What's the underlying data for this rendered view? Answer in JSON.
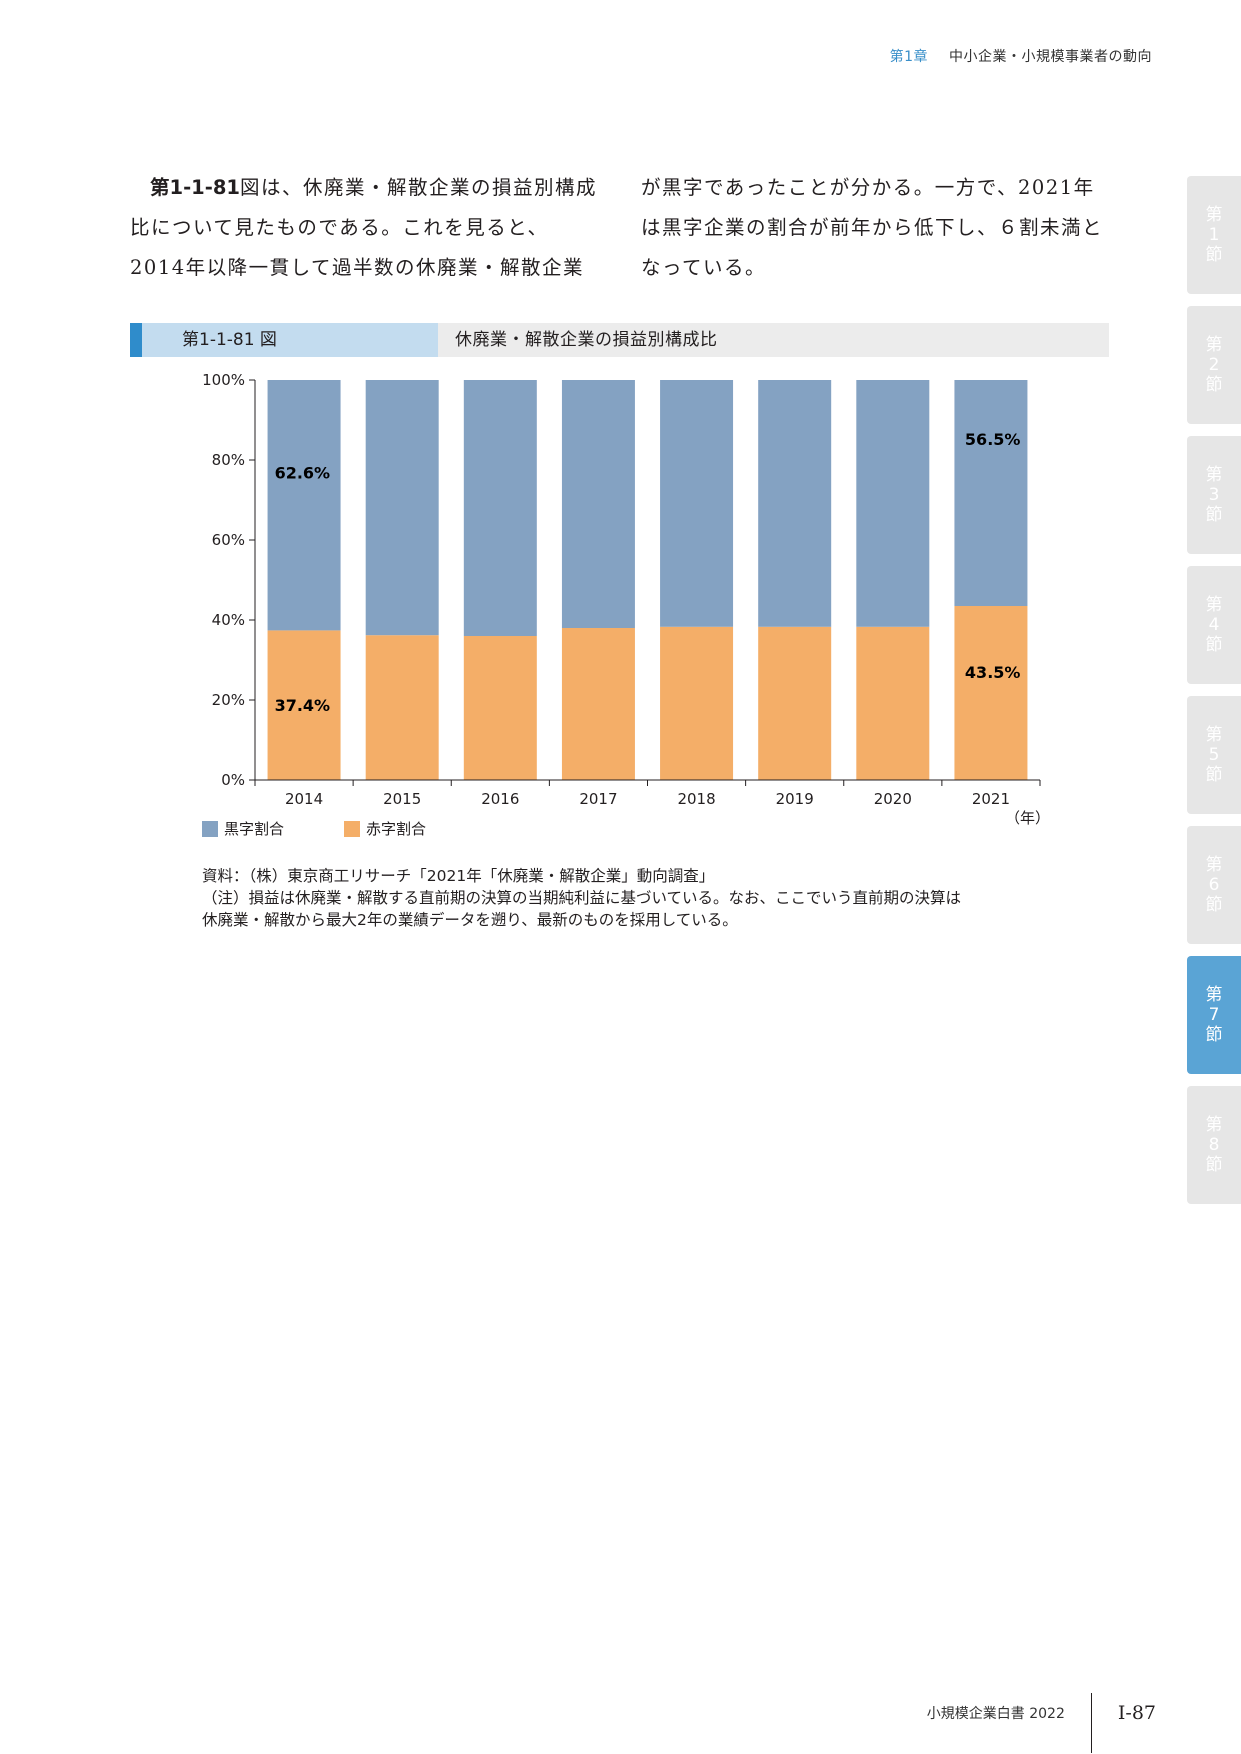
{
  "header": {
    "chapter": "第1章",
    "title": "中小企業・小規模事業者の動向"
  },
  "body": {
    "col1_ref": "第1-1-81",
    "col1_text": "図は、休廃業・解散企業の損益別構成比について見たものである。これを見ると、2014年以降一貫して過半数の休廃業・解散企業",
    "col2_text": "が黒字であったことが分かる。一方で、2021年は黒字企業の割合が前年から低下し、６割未満となっている。"
  },
  "side_tabs": [
    {
      "top": "第",
      "num": "1",
      "bottom": "節",
      "active": false
    },
    {
      "top": "第",
      "num": "2",
      "bottom": "節",
      "active": false
    },
    {
      "top": "第",
      "num": "3",
      "bottom": "節",
      "active": false
    },
    {
      "top": "第",
      "num": "4",
      "bottom": "節",
      "active": false
    },
    {
      "top": "第",
      "num": "5",
      "bottom": "節",
      "active": false
    },
    {
      "top": "第",
      "num": "6",
      "bottom": "節",
      "active": false
    },
    {
      "top": "第",
      "num": "7",
      "bottom": "節",
      "active": true
    },
    {
      "top": "第",
      "num": "8",
      "bottom": "節",
      "active": false
    }
  ],
  "figure": {
    "number": "第1-1-81 図",
    "title": "休廃業・解散企業の損益別構成比"
  },
  "chart_data": {
    "type": "bar",
    "stacked": true,
    "categories": [
      "2014",
      "2015",
      "2016",
      "2017",
      "2018",
      "2019",
      "2020",
      "2021"
    ],
    "series": [
      {
        "name": "黒字割合",
        "color": "#84a2c2",
        "values": [
          62.6,
          63.8,
          64.0,
          62.0,
          61.7,
          61.7,
          61.7,
          56.5
        ]
      },
      {
        "name": "赤字割合",
        "color": "#f4ae68",
        "values": [
          37.4,
          36.2,
          36.0,
          38.0,
          38.3,
          38.3,
          38.3,
          43.5
        ]
      }
    ],
    "data_labels": [
      {
        "series": 0,
        "index": 0,
        "text": "62.6%"
      },
      {
        "series": 1,
        "index": 0,
        "text": "37.4%"
      },
      {
        "series": 0,
        "index": 7,
        "text": "56.5%"
      },
      {
        "series": 1,
        "index": 7,
        "text": "43.5%"
      }
    ],
    "y_ticks": [
      "0%",
      "20%",
      "40%",
      "60%",
      "80%",
      "100%"
    ],
    "ylim": [
      0,
      100
    ],
    "x_unit": "（年）",
    "legend_position": "bottom-left"
  },
  "notes": {
    "source": "資料：（株）東京商工リサーチ「2021年「休廃業・解散企業」動向調査」",
    "note1": "（注）損益は休廃業・解散する直前期の決算の当期純利益に基づいている。なお、ここでいう直前期の決算は",
    "note2": "休廃業・解散から最大2年の業績データを遡り、最新のものを採用している。"
  },
  "footer": {
    "book": "小規模企業白書 2022",
    "page": "Ⅰ-87"
  }
}
